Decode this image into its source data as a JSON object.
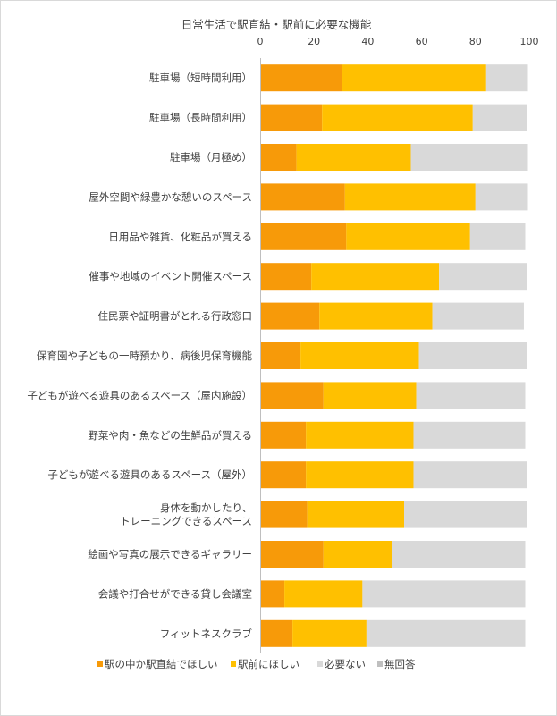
{
  "chart_data": {
    "type": "bar",
    "orientation": "horizontal",
    "stacked": true,
    "title": "日常生活で駅直結・駅前に必要な機能",
    "xlim": [
      0,
      100
    ],
    "xticks": [
      "0",
      "20",
      "40",
      "60",
      "80",
      "100"
    ],
    "grid": false,
    "legend_position": "bottom",
    "categories": [
      [
        "駐車場（短時間利用）"
      ],
      [
        "駐車場（長時間利用）"
      ],
      [
        "駐車場（月極め）"
      ],
      [
        "屋外空間や緑豊かな憩いのスペース"
      ],
      [
        "日用品や雑貨、化粧品が買える"
      ],
      [
        "催事や地域のイベント開催スペース"
      ],
      [
        "住民票や証明書がとれる行政窓口"
      ],
      [
        "保育園や子どもの一時預かり、病後児保育機能"
      ],
      [
        "子どもが遊べる遊具のあるスペース（屋内施設）"
      ],
      [
        "野菜や肉・魚などの生鮮品が買える"
      ],
      [
        "子どもが遊べる遊具のあるスペース（屋外）"
      ],
      [
        "身体を動かしたり、",
        "トレーニングできるスペース"
      ],
      [
        "絵画や写真の展示できるギャラリー"
      ],
      [
        "会議や打合せができる貸し会議室"
      ],
      [
        "フィットネスクラブ"
      ]
    ],
    "series": [
      {
        "name": "駅の中か駅直結でほしい",
        "color": "#f79a09",
        "values": [
          30.5,
          23,
          13.5,
          31.5,
          32,
          19,
          22,
          15,
          23.5,
          17,
          17,
          17.5,
          23.5,
          9,
          12
        ]
      },
      {
        "name": "駅前にほしい",
        "color": "#ffc000",
        "values": [
          53.5,
          56,
          42.5,
          48.5,
          46,
          47.5,
          42,
          44,
          34.5,
          40,
          40,
          36,
          25.5,
          29,
          27.5
        ]
      },
      {
        "name": "必要ない",
        "color": "#d9d9d9",
        "values": [
          15.5,
          20,
          43.5,
          19.5,
          20.5,
          32.5,
          34,
          40,
          40.5,
          41.5,
          42,
          45.5,
          49.5,
          60.5,
          59
        ]
      },
      {
        "name": "無回答",
        "color": "#bfbfbf",
        "values": [
          0,
          0,
          0,
          0,
          0,
          0,
          0,
          0,
          0,
          0,
          0,
          0,
          0,
          0,
          0
        ]
      }
    ]
  }
}
